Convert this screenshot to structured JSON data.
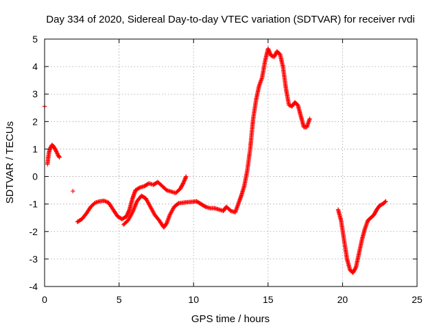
{
  "chart_data": {
    "type": "scatter",
    "title": "Day 334 of 2020, Sidereal Day-to-day VTEC variation (SDTVAR) for receiver rvdi",
    "xlabel": "GPS time / hours",
    "ylabel": "SDTVAR / TECUs",
    "xlim": [
      0,
      25
    ],
    "ylim": [
      -4,
      5
    ],
    "xticks": [
      0,
      5,
      10,
      15,
      20,
      25
    ],
    "yticks": [
      -4,
      -3,
      -2,
      -1,
      0,
      1,
      2,
      3,
      4,
      5
    ],
    "grid": true,
    "marker": "+",
    "color": "#ff0000",
    "series": [
      {
        "name": "SDTVAR",
        "segments": [
          [
            [
              0.0,
              2.55
            ]
          ],
          [
            [
              0.2,
              0.45
            ],
            [
              0.25,
              0.7
            ],
            [
              0.3,
              0.9
            ],
            [
              0.4,
              1.05
            ],
            [
              0.5,
              1.15
            ],
            [
              0.6,
              1.1
            ],
            [
              0.7,
              1.0
            ],
            [
              0.8,
              0.9
            ],
            [
              0.9,
              0.78
            ],
            [
              1.0,
              0.7
            ]
          ],
          [
            [
              1.9,
              -0.53
            ]
          ],
          [
            [
              2.2,
              -1.65
            ],
            [
              2.5,
              -1.55
            ],
            [
              2.8,
              -1.35
            ],
            [
              3.1,
              -1.1
            ],
            [
              3.4,
              -0.95
            ],
            [
              3.7,
              -0.9
            ],
            [
              4.0,
              -0.88
            ],
            [
              4.3,
              -0.95
            ],
            [
              4.6,
              -1.2
            ],
            [
              4.9,
              -1.45
            ],
            [
              5.2,
              -1.55
            ],
            [
              5.5,
              -1.45
            ],
            [
              5.7,
              -1.2
            ],
            [
              5.9,
              -0.8
            ],
            [
              6.1,
              -0.5
            ],
            [
              6.4,
              -0.4
            ],
            [
              6.7,
              -0.35
            ],
            [
              7.0,
              -0.25
            ],
            [
              7.3,
              -0.3
            ],
            [
              7.6,
              -0.2
            ],
            [
              7.9,
              -0.35
            ],
            [
              8.2,
              -0.5
            ],
            [
              8.5,
              -0.55
            ],
            [
              8.8,
              -0.6
            ],
            [
              9.1,
              -0.45
            ],
            [
              9.3,
              -0.25
            ],
            [
              9.5,
              0.0
            ]
          ],
          [
            [
              5.3,
              -1.75
            ],
            [
              5.6,
              -1.6
            ],
            [
              5.9,
              -1.3
            ],
            [
              6.2,
              -0.9
            ],
            [
              6.5,
              -0.7
            ],
            [
              6.8,
              -0.8
            ],
            [
              7.1,
              -1.1
            ],
            [
              7.4,
              -1.4
            ],
            [
              7.7,
              -1.6
            ],
            [
              8.0,
              -1.85
            ],
            [
              8.2,
              -1.7
            ],
            [
              8.4,
              -1.4
            ],
            [
              8.7,
              -1.1
            ],
            [
              9.0,
              -0.97
            ],
            [
              9.3,
              -0.95
            ],
            [
              9.6,
              -0.93
            ],
            [
              9.9,
              -0.92
            ],
            [
              10.2,
              -0.9
            ],
            [
              10.5,
              -1.0
            ],
            [
              10.8,
              -1.1
            ],
            [
              11.1,
              -1.15
            ],
            [
              11.4,
              -1.15
            ],
            [
              11.7,
              -1.2
            ],
            [
              12.0,
              -1.25
            ],
            [
              12.2,
              -1.1
            ],
            [
              12.5,
              -1.25
            ],
            [
              12.8,
              -1.3
            ],
            [
              13.0,
              -1.0
            ],
            [
              13.2,
              -0.7
            ],
            [
              13.4,
              -0.35
            ],
            [
              13.6,
              0.2
            ],
            [
              13.8,
              1.0
            ],
            [
              14.0,
              2.1
            ],
            [
              14.2,
              2.8
            ],
            [
              14.4,
              3.3
            ],
            [
              14.6,
              3.6
            ],
            [
              14.8,
              4.2
            ],
            [
              15.0,
              4.65
            ],
            [
              15.2,
              4.4
            ],
            [
              15.4,
              4.35
            ],
            [
              15.6,
              4.55
            ],
            [
              15.8,
              4.45
            ],
            [
              16.0,
              4.0
            ],
            [
              16.2,
              3.2
            ],
            [
              16.4,
              2.6
            ],
            [
              16.6,
              2.55
            ],
            [
              16.8,
              2.7
            ],
            [
              17.0,
              2.6
            ],
            [
              17.2,
              2.2
            ],
            [
              17.4,
              1.8
            ],
            [
              17.6,
              1.8
            ],
            [
              17.8,
              2.1
            ]
          ],
          [
            [
              19.7,
              -1.2
            ],
            [
              19.9,
              -1.6
            ],
            [
              20.1,
              -2.3
            ],
            [
              20.3,
              -3.0
            ],
            [
              20.5,
              -3.4
            ],
            [
              20.7,
              -3.5
            ],
            [
              20.9,
              -3.3
            ],
            [
              21.1,
              -2.8
            ],
            [
              21.3,
              -2.3
            ],
            [
              21.5,
              -1.9
            ],
            [
              21.7,
              -1.6
            ],
            [
              21.9,
              -1.5
            ],
            [
              22.1,
              -1.4
            ],
            [
              22.3,
              -1.2
            ],
            [
              22.5,
              -1.05
            ],
            [
              22.7,
              -1.0
            ],
            [
              22.9,
              -0.9
            ]
          ]
        ]
      }
    ]
  }
}
